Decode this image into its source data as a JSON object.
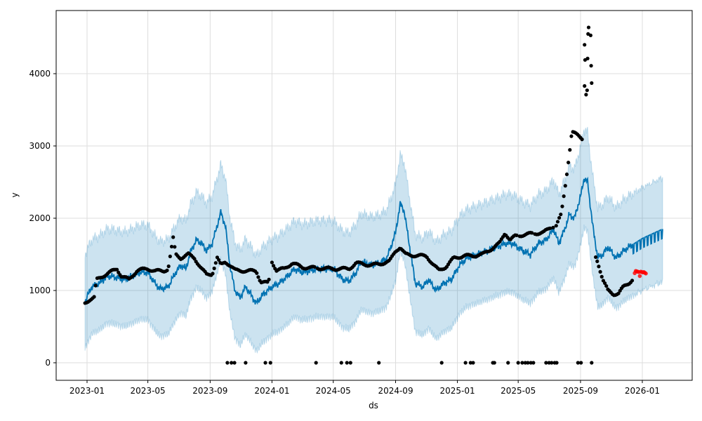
{
  "chart_data": {
    "type": "line",
    "title": "",
    "xlabel": "ds",
    "ylabel": "y",
    "ylim": [
      -250,
      4820
    ],
    "xlim": [
      "2022-12-05",
      "2026-03-04"
    ],
    "grid": true,
    "yticks": [
      {
        "value": 0,
        "label": "0"
      },
      {
        "value": 1000,
        "label": "1000"
      },
      {
        "value": 2000,
        "label": "2000"
      },
      {
        "value": 3000,
        "label": "3000"
      },
      {
        "value": 4000,
        "label": "4000"
      }
    ],
    "xticks": [
      {
        "date": "2023-01-01",
        "label": "2023-01"
      },
      {
        "date": "2023-05-01",
        "label": "2023-05"
      },
      {
        "date": "2023-09-01",
        "label": "2023-09"
      },
      {
        "date": "2024-01-01",
        "label": "2024-01"
      },
      {
        "date": "2024-05-01",
        "label": "2024-05"
      },
      {
        "date": "2024-09-01",
        "label": "2024-09"
      },
      {
        "date": "2025-01-01",
        "label": "2025-01"
      },
      {
        "date": "2025-05-01",
        "label": "2025-05"
      },
      {
        "date": "2025-09-01",
        "label": "2025-09"
      },
      {
        "date": "2026-01-01",
        "label": "2026-01"
      }
    ],
    "colors": {
      "forecast": "#0072B2",
      "interval": "#0072B2",
      "actual": "#000000",
      "holdout": "#ff0000"
    },
    "forecast_start": "2025-12-12",
    "forecast_weekly_amplitude": 130,
    "interval_halfwidth": [
      [
        "2022-12-28",
        650
      ],
      [
        "2025-09-01",
        680
      ],
      [
        "2026-02-10",
        720
      ]
    ],
    "yhat": [
      [
        "2022-12-28",
        850
      ],
      [
        "2023-01-10",
        1050
      ],
      [
        "2023-01-25",
        1100
      ],
      [
        "2023-02-10",
        1200
      ],
      [
        "2023-03-01",
        1180
      ],
      [
        "2023-03-15",
        1150
      ],
      [
        "2023-04-01",
        1200
      ],
      [
        "2023-04-15",
        1250
      ],
      [
        "2023-05-01",
        1250
      ],
      [
        "2023-05-15",
        1100
      ],
      [
        "2023-05-25",
        1020
      ],
      [
        "2023-06-10",
        1050
      ],
      [
        "2023-06-25",
        1250
      ],
      [
        "2023-07-05",
        1350
      ],
      [
        "2023-07-15",
        1300
      ],
      [
        "2023-07-25",
        1550
      ],
      [
        "2023-08-05",
        1700
      ],
      [
        "2023-08-15",
        1650
      ],
      [
        "2023-08-25",
        1550
      ],
      [
        "2023-09-05",
        1650
      ],
      [
        "2023-09-15",
        1900
      ],
      [
        "2023-09-22",
        2080
      ],
      [
        "2023-10-01",
        1900
      ],
      [
        "2023-10-10",
        1350
      ],
      [
        "2023-10-20",
        1000
      ],
      [
        "2023-10-30",
        900
      ],
      [
        "2023-11-10",
        1050
      ],
      [
        "2023-11-20",
        950
      ],
      [
        "2023-12-01",
        820
      ],
      [
        "2023-12-15",
        950
      ],
      [
        "2024-01-01",
        1050
      ],
      [
        "2024-01-15",
        1100
      ],
      [
        "2024-02-01",
        1200
      ],
      [
        "2024-02-15",
        1300
      ],
      [
        "2024-03-01",
        1250
      ],
      [
        "2024-04-01",
        1300
      ],
      [
        "2024-05-01",
        1300
      ],
      [
        "2024-05-20",
        1150
      ],
      [
        "2024-06-01",
        1130
      ],
      [
        "2024-06-15",
        1250
      ],
      [
        "2024-06-25",
        1400
      ],
      [
        "2024-07-15",
        1350
      ],
      [
        "2024-08-01",
        1380
      ],
      [
        "2024-08-15",
        1450
      ],
      [
        "2024-09-01",
        1800
      ],
      [
        "2024-09-10",
        2200
      ],
      [
        "2024-09-18",
        2100
      ],
      [
        "2024-10-01",
        1500
      ],
      [
        "2024-10-10",
        1100
      ],
      [
        "2024-10-25",
        1050
      ],
      [
        "2024-11-05",
        1150
      ],
      [
        "2024-11-20",
        1000
      ],
      [
        "2024-12-05",
        1100
      ],
      [
        "2024-12-20",
        1150
      ],
      [
        "2025-01-05",
        1350
      ],
      [
        "2025-01-20",
        1450
      ],
      [
        "2025-02-10",
        1500
      ],
      [
        "2025-03-01",
        1550
      ],
      [
        "2025-03-20",
        1600
      ],
      [
        "2025-04-05",
        1650
      ],
      [
        "2025-04-20",
        1650
      ],
      [
        "2025-05-10",
        1550
      ],
      [
        "2025-05-25",
        1500
      ],
      [
        "2025-06-10",
        1650
      ],
      [
        "2025-06-25",
        1700
      ],
      [
        "2025-07-10",
        1850
      ],
      [
        "2025-07-20",
        1650
      ],
      [
        "2025-08-01",
        1850
      ],
      [
        "2025-08-10",
        2050
      ],
      [
        "2025-08-20",
        2000
      ],
      [
        "2025-09-01",
        2300
      ],
      [
        "2025-09-08",
        2550
      ],
      [
        "2025-09-15",
        2500
      ],
      [
        "2025-09-25",
        1900
      ],
      [
        "2025-10-05",
        1450
      ],
      [
        "2025-10-15",
        1500
      ],
      [
        "2025-10-25",
        1600
      ],
      [
        "2025-11-10",
        1450
      ],
      [
        "2025-11-25",
        1550
      ],
      [
        "2025-12-05",
        1600
      ],
      [
        "2026-01-01",
        1720
      ],
      [
        "2026-02-10",
        1850
      ]
    ],
    "actual_trend": [
      [
        "2022-12-28",
        830
      ],
      [
        "2023-01-05",
        870
      ],
      [
        "2023-01-15",
        900
      ],
      [
        "2023-01-20",
        1150
      ],
      [
        "2023-02-01",
        1200
      ],
      [
        "2023-02-15",
        1250
      ],
      [
        "2023-03-01",
        1300
      ],
      [
        "2023-03-10",
        1200
      ],
      [
        "2023-03-25",
        1150
      ],
      [
        "2023-04-10",
        1280
      ],
      [
        "2023-05-01",
        1300
      ],
      [
        "2023-05-15",
        1270
      ],
      [
        "2023-06-01",
        1270
      ],
      [
        "2023-06-10",
        1300
      ],
      [
        "2023-06-20",
        1720
      ],
      [
        "2023-06-25",
        1500
      ],
      [
        "2023-07-05",
        1450
      ],
      [
        "2023-07-20",
        1500
      ],
      [
        "2023-08-01",
        1450
      ],
      [
        "2023-08-15",
        1300
      ],
      [
        "2023-08-25",
        1220
      ],
      [
        "2023-09-05",
        1230
      ],
      [
        "2023-09-15",
        1450
      ],
      [
        "2023-09-22",
        1350
      ],
      [
        "2023-10-01",
        1400
      ],
      [
        "2023-10-10",
        1350
      ],
      [
        "2023-10-20",
        1280
      ],
      [
        "2023-11-15",
        1270
      ],
      [
        "2023-12-01",
        1270
      ],
      [
        "2023-12-10",
        1120
      ],
      [
        "2023-12-25",
        1100
      ],
      [
        "2024-01-01",
        1400
      ],
      [
        "2024-01-10",
        1280
      ],
      [
        "2024-01-25",
        1300
      ],
      [
        "2024-02-10",
        1380
      ],
      [
        "2024-03-01",
        1320
      ],
      [
        "2024-04-01",
        1310
      ],
      [
        "2024-05-01",
        1300
      ],
      [
        "2024-06-01",
        1300
      ],
      [
        "2024-06-15",
        1380
      ],
      [
        "2024-07-15",
        1350
      ],
      [
        "2024-08-01",
        1370
      ],
      [
        "2024-08-20",
        1400
      ],
      [
        "2024-09-01",
        1550
      ],
      [
        "2024-09-10",
        1600
      ],
      [
        "2024-09-20",
        1500
      ],
      [
        "2024-10-15",
        1480
      ],
      [
        "2024-11-01",
        1480
      ],
      [
        "2024-11-15",
        1350
      ],
      [
        "2024-11-25",
        1280
      ],
      [
        "2024-12-10",
        1330
      ],
      [
        "2024-12-25",
        1450
      ],
      [
        "2025-01-15",
        1480
      ],
      [
        "2025-02-01",
        1480
      ],
      [
        "2025-02-20",
        1500
      ],
      [
        "2025-03-10",
        1580
      ],
      [
        "2025-03-25",
        1650
      ],
      [
        "2025-04-05",
        1800
      ],
      [
        "2025-04-15",
        1700
      ],
      [
        "2025-04-25",
        1750
      ],
      [
        "2025-05-10",
        1770
      ],
      [
        "2025-06-01",
        1790
      ],
      [
        "2025-06-20",
        1800
      ],
      [
        "2025-07-05",
        1880
      ],
      [
        "2025-07-15",
        1900
      ],
      [
        "2025-07-25",
        2050
      ],
      [
        "2025-08-01",
        2400
      ],
      [
        "2025-08-10",
        2900
      ],
      [
        "2025-08-15",
        3200
      ],
      [
        "2025-08-25",
        3150
      ],
      [
        "2025-09-05",
        3100
      ],
      [
        "2025-09-30",
        1480
      ],
      [
        "2025-10-05",
        1400
      ],
      [
        "2025-10-15",
        1150
      ],
      [
        "2025-10-25",
        1000
      ],
      [
        "2025-11-05",
        950
      ],
      [
        "2025-11-15",
        960
      ],
      [
        "2025-11-25",
        1050
      ],
      [
        "2025-12-05",
        1100
      ],
      [
        "2025-12-12",
        1150
      ]
    ],
    "actual_gap": [
      "2025-09-06",
      "2025-09-29"
    ],
    "actual_spike": [
      [
        "2025-09-09",
        4400
      ],
      [
        "2025-09-10",
        4190
      ],
      [
        "2025-09-12",
        3710
      ],
      [
        "2025-09-14",
        3770
      ],
      [
        "2025-09-15",
        4210
      ],
      [
        "2025-09-16",
        4550
      ],
      [
        "2025-09-17",
        4640
      ],
      [
        "2025-09-21",
        4530
      ],
      [
        "2025-09-22",
        4110
      ],
      [
        "2025-09-23",
        3870
      ],
      [
        "2025-09-09",
        3830
      ]
    ],
    "actual_zeros": [
      "2023-10-05",
      "2023-10-13",
      "2023-10-19",
      "2023-11-10",
      "2023-12-19",
      "2023-12-29",
      "2024-03-28",
      "2024-05-17",
      "2024-05-28",
      "2024-06-04",
      "2024-07-30",
      "2024-12-01",
      "2025-01-17",
      "2025-01-27",
      "2025-02-01",
      "2025-03-12",
      "2025-03-15",
      "2025-04-11",
      "2025-05-01",
      "2025-05-09",
      "2025-05-15",
      "2025-05-20",
      "2025-05-26",
      "2025-05-31",
      "2025-06-25",
      "2025-07-01",
      "2025-07-06",
      "2025-07-12",
      "2025-07-16",
      "2025-08-27",
      "2025-09-02",
      "2025-09-23"
    ],
    "holdout": [
      [
        "2025-12-17",
        1240
      ],
      [
        "2025-12-19",
        1270
      ],
      [
        "2025-12-21",
        1265
      ],
      [
        "2025-12-23",
        1260
      ],
      [
        "2025-12-25",
        1255
      ],
      [
        "2025-12-27",
        1200
      ],
      [
        "2025-12-29",
        1260
      ],
      [
        "2025-12-31",
        1255
      ],
      [
        "2026-01-02",
        1250
      ],
      [
        "2026-01-04",
        1255
      ],
      [
        "2026-01-06",
        1245
      ],
      [
        "2026-01-08",
        1235
      ]
    ]
  }
}
